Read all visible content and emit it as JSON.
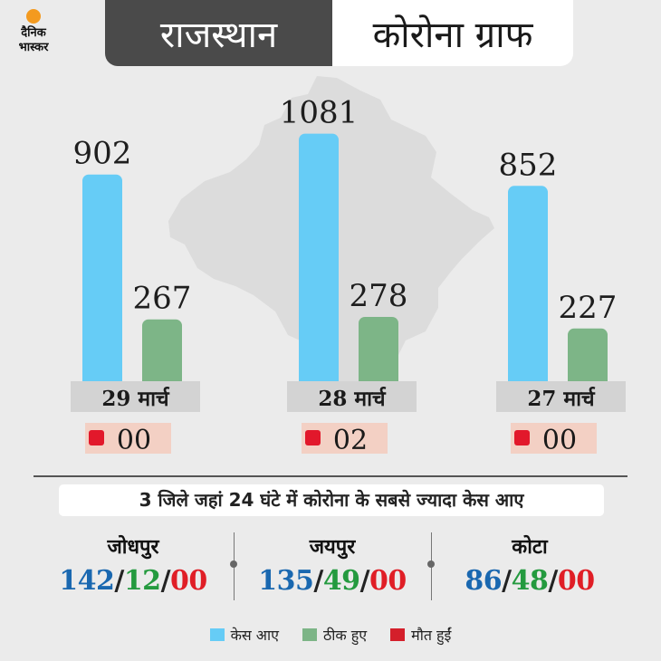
{
  "header": {
    "left_title": "राजस्थान",
    "right_title": "कोरोना ग्राफ"
  },
  "logo": {
    "line1": "दैनिक",
    "line2": "भास्कर"
  },
  "colors": {
    "cases": "#66ccf6",
    "recovered": "#7db587",
    "deaths": "#e2182b",
    "death_box": "#f3d0c4",
    "date_box": "#d3d3d3"
  },
  "chart_data": {
    "type": "bar",
    "categories": [
      "29 मार्च",
      "28 मार्च",
      "27 मार्च"
    ],
    "series": [
      {
        "name": "केस आए",
        "values": [
          902,
          1081,
          852
        ]
      },
      {
        "name": "ठीक हुए",
        "values": [
          267,
          278,
          227
        ]
      }
    ],
    "deaths": [
      "00",
      "02",
      "00"
    ],
    "ylim": [
      0,
      1200
    ],
    "legend_position": "bottom"
  },
  "subtitle": "3 जिले जहां 24 घंटे में कोरोना के सबसे ज्यादा केस आए",
  "districts": [
    {
      "name": "जोधपुर",
      "cases": "142",
      "recovered": "12",
      "deaths": "00"
    },
    {
      "name": "जयपुर",
      "cases": "135",
      "recovered": "49",
      "deaths": "00"
    },
    {
      "name": "कोटा",
      "cases": "86",
      "recovered": "48",
      "deaths": "00"
    }
  ],
  "legend": [
    {
      "label": "केस आए",
      "color": "#66ccf6"
    },
    {
      "label": "ठीक हुए",
      "color": "#7db587"
    },
    {
      "label": "मौत हुईं",
      "color": "#d41f2b"
    }
  ],
  "separator": "/"
}
